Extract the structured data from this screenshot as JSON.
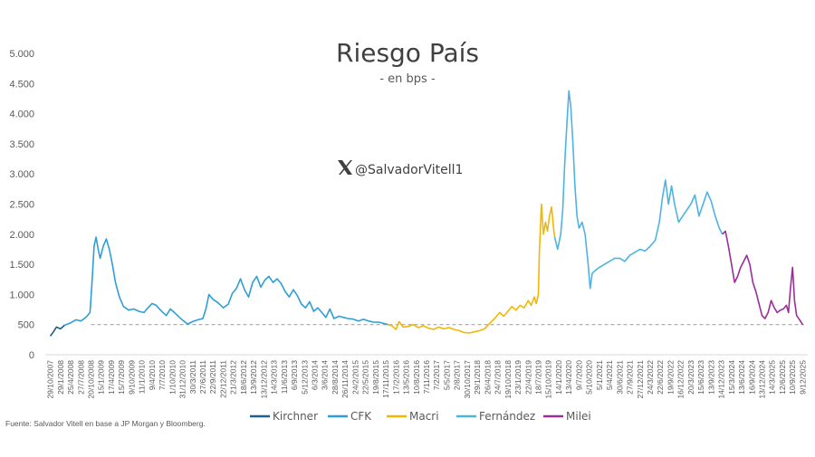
{
  "chart_data": {
    "type": "line",
    "title": "Riesgo País",
    "subtitle": "- en bps -",
    "watermark": "@SalvadorVitell1",
    "source": "Fuente: Salvador Vitell en base a JP Morgan y Bloomberg.",
    "ylim": [
      0,
      5000
    ],
    "y_ticks": [
      0,
      500,
      1000,
      1500,
      2000,
      2500,
      3000,
      3500,
      4000,
      4500,
      5000
    ],
    "y_tick_labels": [
      "0",
      "500",
      "1.000",
      "1.500",
      "2.000",
      "2.500",
      "3.000",
      "3.500",
      "4.000",
      "4.500",
      "5.000"
    ],
    "x_tick_labels": [
      "29/10/2007",
      "29/1/2008",
      "25/4/2008",
      "27/7/2008",
      "20/10/2008",
      "15/1/2009",
      "17/4/2009",
      "15/7/2009",
      "9/10/2009",
      "11/1/2010",
      "9/4/2010",
      "7/7/2010",
      "1/10/2010",
      "31/12/2010",
      "30/3/2011",
      "27/6/2011",
      "22/9/2011",
      "22/12/2011",
      "21/3/2012",
      "18/6/2012",
      "13/9/2012",
      "13/12/2012",
      "14/3/2013",
      "11/6/2013",
      "6/9/2013",
      "5/12/2013",
      "6/3/2014",
      "3/6/2014",
      "28/8/2014",
      "26/11/2014",
      "24/2/2015",
      "22/5/2015",
      "19/8/2015",
      "17/11/2015",
      "17/2/2016",
      "13/5/2016",
      "10/8/2016",
      "7/11/2016",
      "7/2/2017",
      "5/5/2017",
      "2/8/2017",
      "30/10/2017",
      "29/1/2018",
      "26/4/2018",
      "24/7/2018",
      "19/10/2018",
      "23/1/2019",
      "22/4/2019",
      "18/7/2019",
      "15/10/2019",
      "14/1/2020",
      "13/4/2020",
      "9/7/2020",
      "5/10/2020",
      "5/1/2021",
      "5/4/2021",
      "30/6/2021",
      "27/9/2021",
      "27/12/2021",
      "24/3/2022",
      "22/6/2022",
      "19/9/2022",
      "16/12/2022",
      "20/3/2023",
      "15/6/2023",
      "13/9/2023",
      "14/12/2023",
      "15/3/2024",
      "13/6/2024",
      "16/9/2024",
      "13/12/2024",
      "14/3/2025",
      "12/6/2025",
      "10/9/2025",
      "9/12/2025"
    ],
    "reference_line": {
      "value": 500,
      "style": "dashed",
      "color": "#a6a6a6"
    },
    "series": [
      {
        "name": "Kirchner",
        "color": "#1f5f8b",
        "points": [
          [
            0,
            310
          ],
          [
            0.3,
            380
          ],
          [
            0.6,
            460
          ],
          [
            1.0,
            430
          ],
          [
            1.4,
            490
          ]
        ]
      },
      {
        "name": "CFK",
        "color": "#2e9fd6",
        "points": [
          [
            1.4,
            490
          ],
          [
            2,
            530
          ],
          [
            2.5,
            580
          ],
          [
            3,
            560
          ],
          [
            3.5,
            620
          ],
          [
            3.9,
            700
          ],
          [
            4.1,
            1200
          ],
          [
            4.3,
            1800
          ],
          [
            4.5,
            1950
          ],
          [
            4.7,
            1750
          ],
          [
            4.9,
            1600
          ],
          [
            5.2,
            1800
          ],
          [
            5.5,
            1920
          ],
          [
            5.8,
            1750
          ],
          [
            6.1,
            1500
          ],
          [
            6.4,
            1200
          ],
          [
            6.8,
            950
          ],
          [
            7.2,
            800
          ],
          [
            7.7,
            740
          ],
          [
            8.2,
            760
          ],
          [
            8.7,
            720
          ],
          [
            9.2,
            700
          ],
          [
            9.6,
            780
          ],
          [
            10.0,
            850
          ],
          [
            10.4,
            820
          ],
          [
            10.9,
            730
          ],
          [
            11.4,
            650
          ],
          [
            11.8,
            760
          ],
          [
            12.2,
            700
          ],
          [
            12.7,
            620
          ],
          [
            13.1,
            560
          ],
          [
            13.5,
            510
          ],
          [
            14.0,
            550
          ],
          [
            14.5,
            580
          ],
          [
            15.0,
            600
          ],
          [
            15.3,
            760
          ],
          [
            15.6,
            1000
          ],
          [
            16.0,
            920
          ],
          [
            16.5,
            860
          ],
          [
            17.0,
            780
          ],
          [
            17.5,
            840
          ],
          [
            17.9,
            1020
          ],
          [
            18.3,
            1100
          ],
          [
            18.7,
            1260
          ],
          [
            19.1,
            1080
          ],
          [
            19.5,
            960
          ],
          [
            19.9,
            1200
          ],
          [
            20.3,
            1300
          ],
          [
            20.7,
            1120
          ],
          [
            21.1,
            1240
          ],
          [
            21.5,
            1300
          ],
          [
            21.9,
            1200
          ],
          [
            22.3,
            1260
          ],
          [
            22.7,
            1180
          ],
          [
            23.1,
            1050
          ],
          [
            23.5,
            960
          ],
          [
            23.9,
            1080
          ],
          [
            24.3,
            980
          ],
          [
            24.7,
            840
          ],
          [
            25.1,
            780
          ],
          [
            25.5,
            880
          ],
          [
            25.9,
            720
          ],
          [
            26.3,
            780
          ],
          [
            26.7,
            700
          ],
          [
            27.1,
            620
          ],
          [
            27.5,
            760
          ],
          [
            27.9,
            600
          ],
          [
            28.4,
            640
          ],
          [
            28.8,
            620
          ],
          [
            29.3,
            600
          ],
          [
            29.8,
            590
          ],
          [
            30.3,
            560
          ],
          [
            30.8,
            590
          ],
          [
            31.3,
            560
          ],
          [
            31.8,
            540
          ],
          [
            32.3,
            540
          ],
          [
            32.8,
            520
          ],
          [
            33.2,
            500
          ]
        ]
      },
      {
        "name": "Macri",
        "color": "#f2b705",
        "points": [
          [
            33.2,
            500
          ],
          [
            33.6,
            480
          ],
          [
            34.0,
            420
          ],
          [
            34.3,
            550
          ],
          [
            34.7,
            460
          ],
          [
            35.2,
            470
          ],
          [
            35.7,
            500
          ],
          [
            36.2,
            450
          ],
          [
            36.7,
            480
          ],
          [
            37.2,
            440
          ],
          [
            37.7,
            420
          ],
          [
            38.2,
            460
          ],
          [
            38.7,
            430
          ],
          [
            39.2,
            450
          ],
          [
            39.7,
            420
          ],
          [
            40.2,
            400
          ],
          [
            40.7,
            370
          ],
          [
            41.2,
            360
          ],
          [
            41.7,
            380
          ],
          [
            42.2,
            400
          ],
          [
            42.7,
            430
          ],
          [
            43.2,
            520
          ],
          [
            43.7,
            600
          ],
          [
            44.2,
            700
          ],
          [
            44.6,
            640
          ],
          [
            45.0,
            720
          ],
          [
            45.4,
            800
          ],
          [
            45.8,
            740
          ],
          [
            46.2,
            820
          ],
          [
            46.6,
            780
          ],
          [
            47.0,
            900
          ],
          [
            47.3,
            820
          ],
          [
            47.6,
            960
          ],
          [
            47.8,
            850
          ],
          [
            48.0,
            1000
          ],
          [
            48.1,
            1700
          ],
          [
            48.3,
            2500
          ],
          [
            48.5,
            2000
          ],
          [
            48.7,
            2200
          ],
          [
            48.9,
            2050
          ],
          [
            49.1,
            2300
          ],
          [
            49.3,
            2450
          ],
          [
            49.5,
            2100
          ],
          [
            49.6,
            1950
          ]
        ]
      },
      {
        "name": "Fernández",
        "color": "#4eb3e3",
        "points": [
          [
            49.6,
            1950
          ],
          [
            49.9,
            1750
          ],
          [
            50.2,
            2000
          ],
          [
            50.4,
            2400
          ],
          [
            50.6,
            3200
          ],
          [
            50.8,
            3800
          ],
          [
            51.0,
            4380
          ],
          [
            51.2,
            4100
          ],
          [
            51.4,
            3500
          ],
          [
            51.6,
            2800
          ],
          [
            51.8,
            2300
          ],
          [
            52.0,
            2100
          ],
          [
            52.3,
            2200
          ],
          [
            52.6,
            2000
          ],
          [
            52.9,
            1500
          ],
          [
            53.1,
            1100
          ],
          [
            53.3,
            1350
          ],
          [
            53.6,
            1400
          ],
          [
            54.0,
            1450
          ],
          [
            54.5,
            1500
          ],
          [
            55.0,
            1550
          ],
          [
            55.5,
            1600
          ],
          [
            56.0,
            1600
          ],
          [
            56.5,
            1550
          ],
          [
            57.0,
            1650
          ],
          [
            57.5,
            1700
          ],
          [
            58.0,
            1750
          ],
          [
            58.5,
            1720
          ],
          [
            59.0,
            1800
          ],
          [
            59.5,
            1900
          ],
          [
            59.9,
            2200
          ],
          [
            60.2,
            2600
          ],
          [
            60.5,
            2900
          ],
          [
            60.8,
            2500
          ],
          [
            61.1,
            2800
          ],
          [
            61.4,
            2500
          ],
          [
            61.8,
            2200
          ],
          [
            62.2,
            2300
          ],
          [
            62.6,
            2400
          ],
          [
            63.0,
            2500
          ],
          [
            63.4,
            2650
          ],
          [
            63.8,
            2300
          ],
          [
            64.2,
            2500
          ],
          [
            64.6,
            2700
          ],
          [
            65.0,
            2550
          ],
          [
            65.4,
            2300
          ],
          [
            65.8,
            2100
          ],
          [
            66.1,
            2000
          ]
        ]
      },
      {
        "name": "Milei",
        "color": "#9b2d9b",
        "points": [
          [
            66.1,
            2000
          ],
          [
            66.4,
            2050
          ],
          [
            66.7,
            1800
          ],
          [
            67.0,
            1500
          ],
          [
            67.3,
            1200
          ],
          [
            67.6,
            1300
          ],
          [
            67.9,
            1450
          ],
          [
            68.2,
            1550
          ],
          [
            68.5,
            1650
          ],
          [
            68.8,
            1500
          ],
          [
            69.1,
            1200
          ],
          [
            69.4,
            1050
          ],
          [
            69.7,
            850
          ],
          [
            70.0,
            650
          ],
          [
            70.3,
            600
          ],
          [
            70.6,
            700
          ],
          [
            70.9,
            900
          ],
          [
            71.2,
            780
          ],
          [
            71.5,
            700
          ],
          [
            71.8,
            740
          ],
          [
            72.1,
            760
          ],
          [
            72.4,
            820
          ],
          [
            72.6,
            700
          ],
          [
            72.8,
            1100
          ],
          [
            73.0,
            1450
          ],
          [
            73.2,
            900
          ],
          [
            73.4,
            650
          ],
          [
            73.7,
            580
          ],
          [
            74.0,
            500
          ]
        ]
      }
    ]
  }
}
